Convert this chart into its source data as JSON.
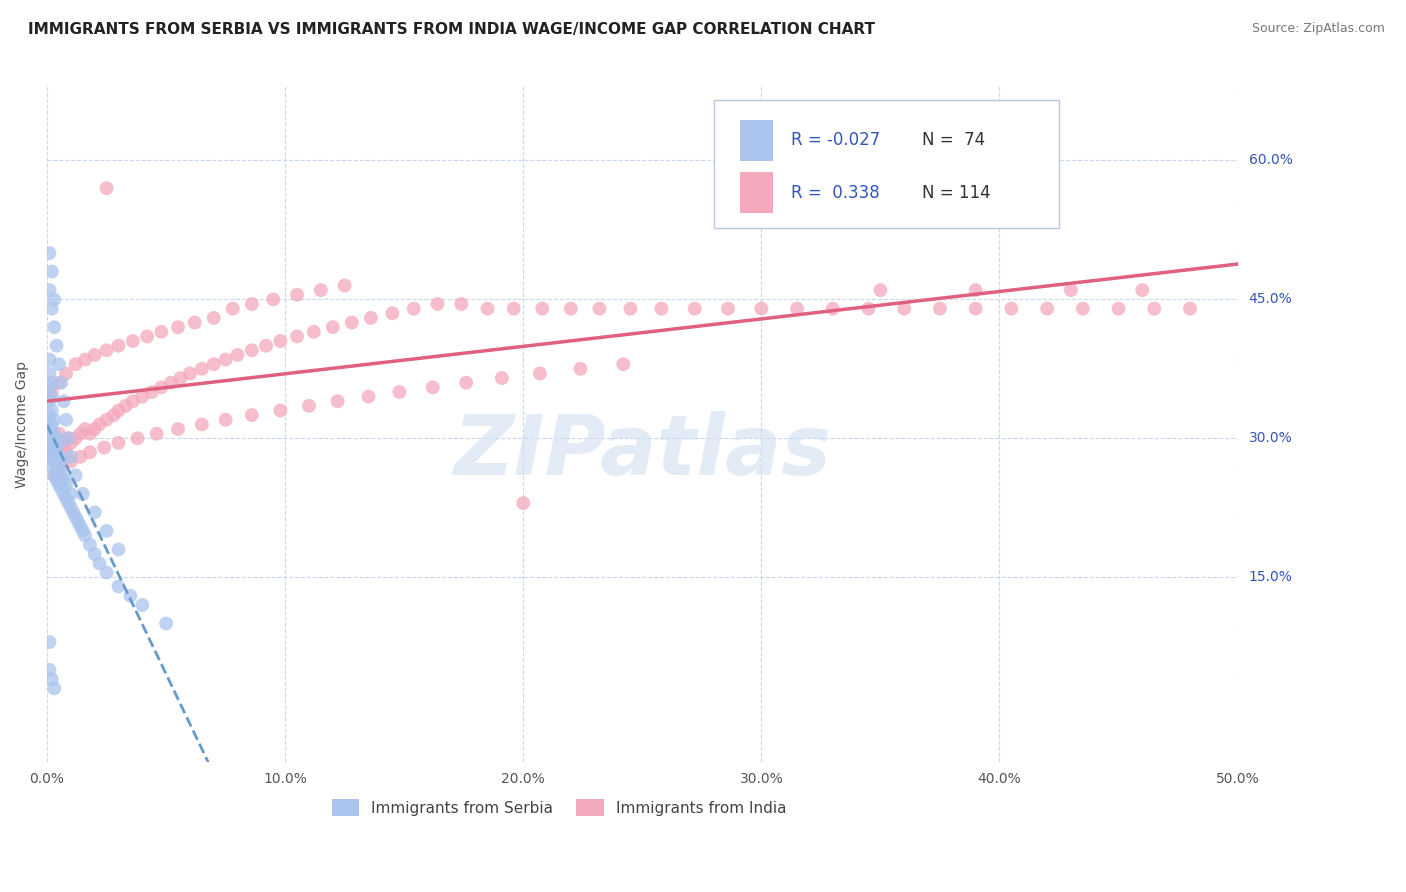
{
  "title": "IMMIGRANTS FROM SERBIA VS IMMIGRANTS FROM INDIA WAGE/INCOME GAP CORRELATION CHART",
  "source": "Source: ZipAtlas.com",
  "ylabel": "Wage/Income Gap",
  "xlim": [
    0.0,
    0.5
  ],
  "ylim": [
    -0.05,
    0.68
  ],
  "xticks": [
    0.0,
    0.1,
    0.2,
    0.3,
    0.4,
    0.5
  ],
  "xtick_labels": [
    "0.0%",
    "10.0%",
    "20.0%",
    "30.0%",
    "40.0%",
    "50.0%"
  ],
  "yticks": [
    0.15,
    0.3,
    0.45,
    0.6
  ],
  "ytick_labels": [
    "15.0%",
    "30.0%",
    "45.0%",
    "60.0%"
  ],
  "color_serbia": "#aac4ee",
  "color_india": "#f4a8bc",
  "trendline_serbia_color": "#6699cc",
  "trendline_india_color": "#e06080",
  "legend_r_color": "#3355bb",
  "legend_n_color": "#333333",
  "serbia_x": [
    0.001,
    0.001,
    0.001,
    0.001,
    0.001,
    0.001,
    0.001,
    0.001,
    0.002,
    0.002,
    0.002,
    0.002,
    0.002,
    0.002,
    0.002,
    0.003,
    0.003,
    0.003,
    0.003,
    0.003,
    0.004,
    0.004,
    0.004,
    0.004,
    0.005,
    0.005,
    0.005,
    0.005,
    0.006,
    0.006,
    0.006,
    0.007,
    0.007,
    0.008,
    0.008,
    0.009,
    0.01,
    0.01,
    0.011,
    0.012,
    0.013,
    0.014,
    0.015,
    0.016,
    0.018,
    0.02,
    0.022,
    0.025,
    0.03,
    0.035,
    0.04,
    0.05,
    0.001,
    0.001,
    0.002,
    0.002,
    0.003,
    0.003,
    0.004,
    0.005,
    0.006,
    0.007,
    0.008,
    0.009,
    0.01,
    0.012,
    0.015,
    0.02,
    0.025,
    0.03,
    0.001,
    0.002,
    0.003,
    0.001
  ],
  "serbia_y": [
    0.28,
    0.295,
    0.31,
    0.325,
    0.34,
    0.355,
    0.37,
    0.385,
    0.27,
    0.285,
    0.3,
    0.315,
    0.33,
    0.345,
    0.36,
    0.26,
    0.275,
    0.29,
    0.305,
    0.32,
    0.255,
    0.27,
    0.285,
    0.3,
    0.25,
    0.265,
    0.28,
    0.295,
    0.245,
    0.26,
    0.275,
    0.24,
    0.255,
    0.235,
    0.25,
    0.23,
    0.225,
    0.24,
    0.22,
    0.215,
    0.21,
    0.205,
    0.2,
    0.195,
    0.185,
    0.175,
    0.165,
    0.155,
    0.14,
    0.13,
    0.12,
    0.1,
    0.46,
    0.5,
    0.44,
    0.48,
    0.42,
    0.45,
    0.4,
    0.38,
    0.36,
    0.34,
    0.32,
    0.3,
    0.28,
    0.26,
    0.24,
    0.22,
    0.2,
    0.18,
    0.05,
    0.04,
    0.03,
    0.08
  ],
  "india_x": [
    0.001,
    0.002,
    0.003,
    0.004,
    0.005,
    0.006,
    0.007,
    0.008,
    0.009,
    0.01,
    0.012,
    0.014,
    0.016,
    0.018,
    0.02,
    0.022,
    0.025,
    0.028,
    0.03,
    0.033,
    0.036,
    0.04,
    0.044,
    0.048,
    0.052,
    0.056,
    0.06,
    0.065,
    0.07,
    0.075,
    0.08,
    0.086,
    0.092,
    0.098,
    0.105,
    0.112,
    0.12,
    0.128,
    0.136,
    0.145,
    0.154,
    0.164,
    0.174,
    0.185,
    0.196,
    0.208,
    0.22,
    0.232,
    0.245,
    0.258,
    0.272,
    0.286,
    0.3,
    0.315,
    0.33,
    0.345,
    0.36,
    0.375,
    0.39,
    0.405,
    0.42,
    0.435,
    0.45,
    0.465,
    0.48,
    0.002,
    0.005,
    0.008,
    0.012,
    0.016,
    0.02,
    0.025,
    0.03,
    0.036,
    0.042,
    0.048,
    0.055,
    0.062,
    0.07,
    0.078,
    0.086,
    0.095,
    0.105,
    0.115,
    0.125,
    0.003,
    0.006,
    0.01,
    0.014,
    0.018,
    0.024,
    0.03,
    0.038,
    0.046,
    0.055,
    0.065,
    0.075,
    0.086,
    0.098,
    0.11,
    0.122,
    0.135,
    0.148,
    0.162,
    0.176,
    0.191,
    0.207,
    0.224,
    0.242,
    0.35,
    0.39,
    0.43,
    0.46,
    0.025,
    0.2
  ],
  "india_y": [
    0.28,
    0.29,
    0.295,
    0.3,
    0.305,
    0.295,
    0.29,
    0.285,
    0.3,
    0.295,
    0.3,
    0.305,
    0.31,
    0.305,
    0.31,
    0.315,
    0.32,
    0.325,
    0.33,
    0.335,
    0.34,
    0.345,
    0.35,
    0.355,
    0.36,
    0.365,
    0.37,
    0.375,
    0.38,
    0.385,
    0.39,
    0.395,
    0.4,
    0.405,
    0.41,
    0.415,
    0.42,
    0.425,
    0.43,
    0.435,
    0.44,
    0.445,
    0.445,
    0.44,
    0.44,
    0.44,
    0.44,
    0.44,
    0.44,
    0.44,
    0.44,
    0.44,
    0.44,
    0.44,
    0.44,
    0.44,
    0.44,
    0.44,
    0.44,
    0.44,
    0.44,
    0.44,
    0.44,
    0.44,
    0.44,
    0.35,
    0.36,
    0.37,
    0.38,
    0.385,
    0.39,
    0.395,
    0.4,
    0.405,
    0.41,
    0.415,
    0.42,
    0.425,
    0.43,
    0.44,
    0.445,
    0.45,
    0.455,
    0.46,
    0.465,
    0.26,
    0.27,
    0.275,
    0.28,
    0.285,
    0.29,
    0.295,
    0.3,
    0.305,
    0.31,
    0.315,
    0.32,
    0.325,
    0.33,
    0.335,
    0.34,
    0.345,
    0.35,
    0.355,
    0.36,
    0.365,
    0.37,
    0.375,
    0.38,
    0.46,
    0.46,
    0.46,
    0.46,
    0.57,
    0.23
  ],
  "watermark_text": "ZIPatlas",
  "background_color": "#ffffff",
  "grid_color": "#c8d8f0",
  "title_fontsize": 11,
  "tick_fontsize": 10,
  "ylabel_fontsize": 10,
  "source_fontsize": 9,
  "legend_fontsize": 12,
  "dot_size": 100
}
